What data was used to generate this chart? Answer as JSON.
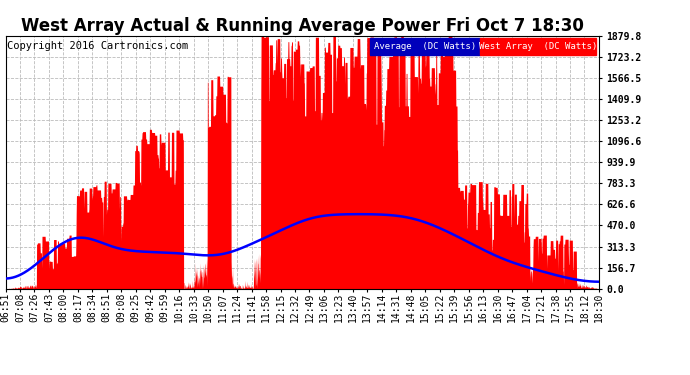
{
  "title": "West Array Actual & Running Average Power Fri Oct 7 18:30",
  "copyright": "Copyright 2016 Cartronics.com",
  "yticks": [
    0.0,
    156.7,
    313.3,
    470.0,
    626.6,
    783.3,
    939.9,
    1096.6,
    1253.2,
    1409.9,
    1566.5,
    1723.2,
    1879.8
  ],
  "ymax": 1879.8,
  "ymin": 0.0,
  "legend_avg_label": "Average  (DC Watts)",
  "legend_west_label": "West Array  (DC Watts)",
  "avg_line_color": "#0000ff",
  "west_fill_color": "#ff0000",
  "background_color": "#ffffff",
  "grid_color": "#bbbbbb",
  "title_fontsize": 12,
  "copyright_fontsize": 7.5,
  "tick_fontsize": 7,
  "x_labels": [
    "06:51",
    "07:08",
    "07:26",
    "07:43",
    "08:00",
    "08:17",
    "08:34",
    "08:51",
    "09:08",
    "09:25",
    "09:42",
    "09:59",
    "10:16",
    "10:33",
    "10:50",
    "11:07",
    "11:24",
    "11:41",
    "11:58",
    "12:15",
    "12:32",
    "12:49",
    "13:06",
    "13:23",
    "13:40",
    "13:57",
    "14:14",
    "14:31",
    "14:48",
    "15:05",
    "15:22",
    "15:39",
    "15:56",
    "16:13",
    "16:30",
    "16:47",
    "17:04",
    "17:21",
    "17:38",
    "17:55",
    "18:12",
    "18:30"
  ]
}
